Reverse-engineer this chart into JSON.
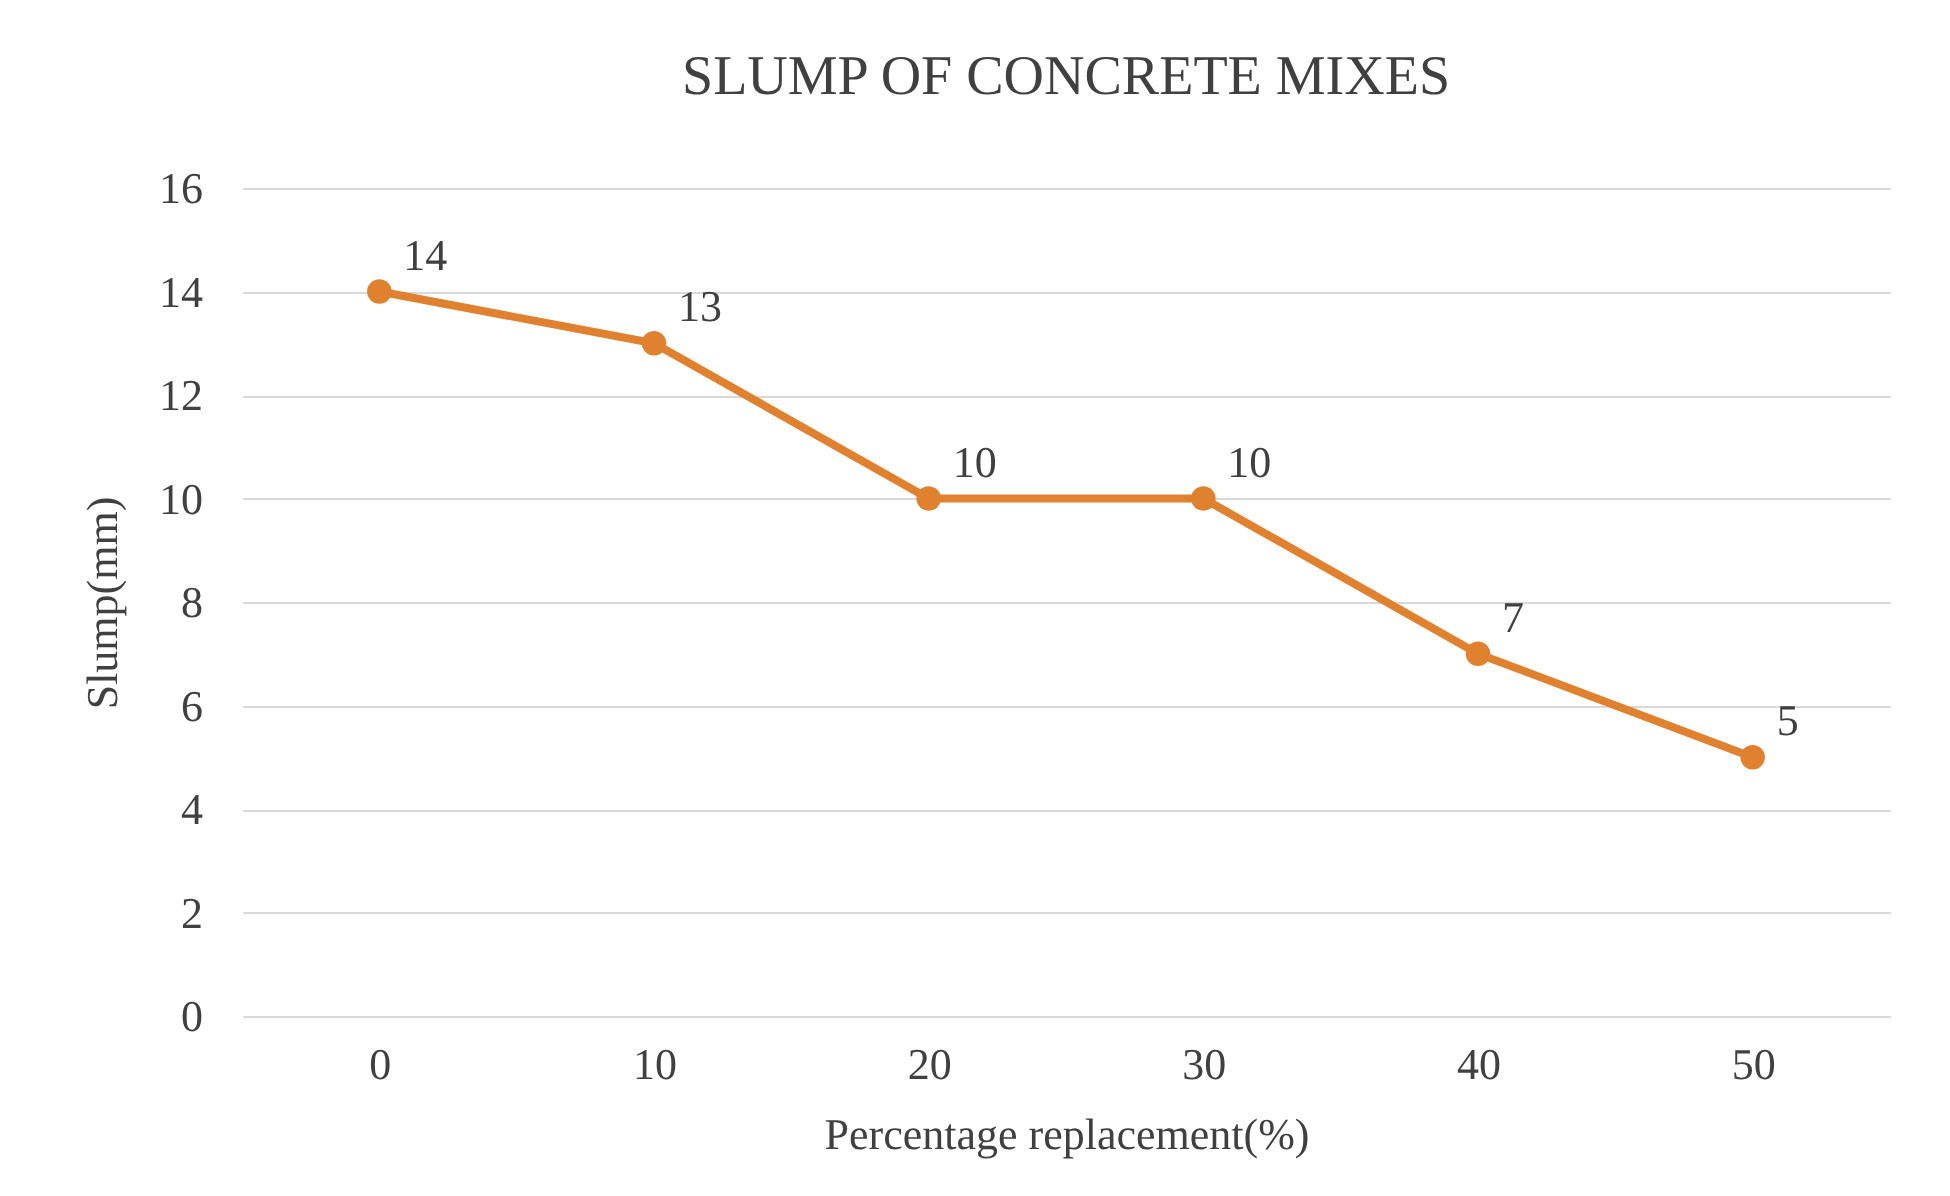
{
  "chart_data": {
    "type": "line",
    "title": "SLUMP OF CONCRETE MIXES",
    "xlabel": "Percentage replacement(%)",
    "ylabel": "Slump(mm)",
    "categories": [
      "0",
      "10",
      "20",
      "30",
      "40",
      "50"
    ],
    "series": [
      {
        "color": "#e0812f",
        "values": [
          14,
          13,
          10,
          10,
          7,
          5
        ]
      }
    ],
    "ylim": [
      0,
      16
    ],
    "yticks": [
      0,
      2,
      4,
      6,
      8,
      10,
      12,
      14,
      16
    ],
    "grid": "y",
    "marker": "circle",
    "line_style": "solid",
    "data_labels": true
  }
}
